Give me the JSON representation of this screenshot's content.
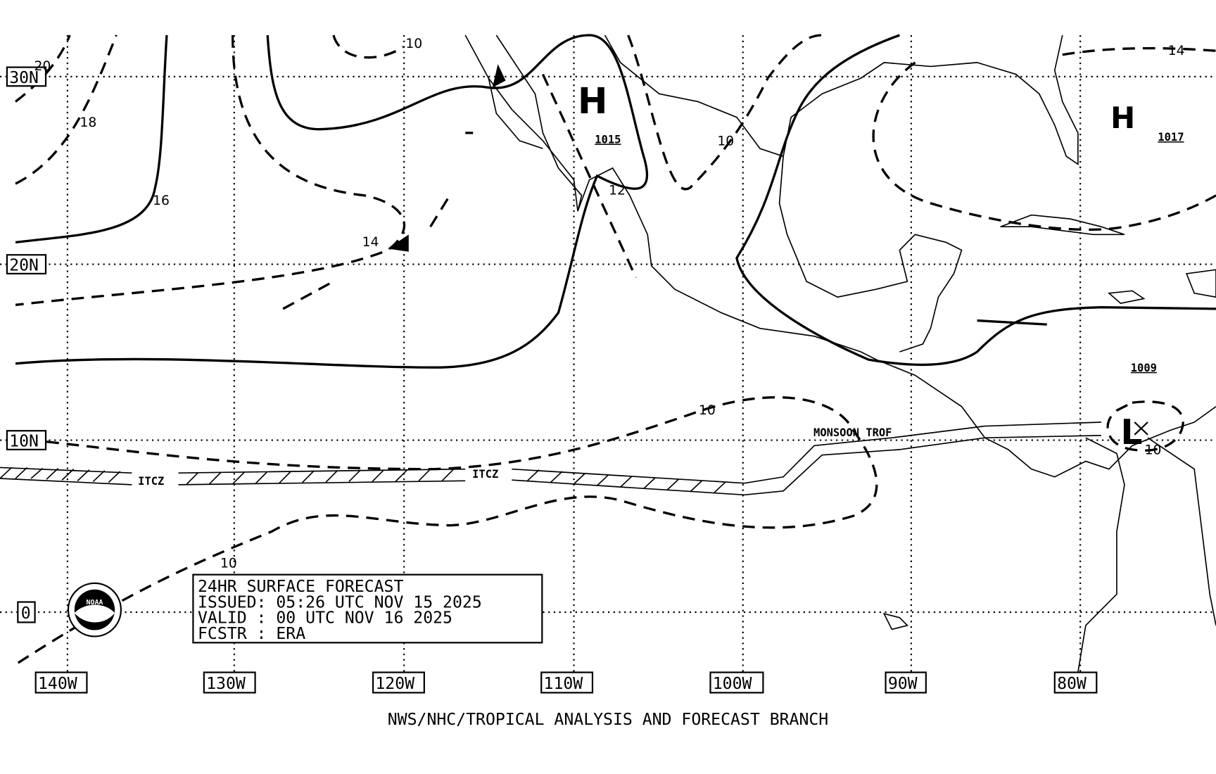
{
  "latitude_labels": [
    "30N",
    "20N",
    "10N",
    "0"
  ],
  "longitude_labels": [
    "140W",
    "130W",
    "120W",
    "110W",
    "100W",
    "90W",
    "80W"
  ],
  "isobar_labels": [
    "20",
    "18",
    "16",
    "14",
    "10",
    "10",
    "12",
    "14",
    "10",
    "10",
    "10"
  ],
  "pressure_centers": [
    {
      "symbol": "H",
      "pressure": "1015"
    },
    {
      "symbol": "H",
      "pressure": "1017"
    },
    {
      "symbol": "L",
      "pressure": "1009"
    }
  ],
  "features": [
    "ITCZ",
    "ITCZ",
    "MONSOON TROF"
  ],
  "forecast_box": [
    "24HR SURFACE FORECAST",
    "ISSUED: 05:26 UTC NOV 15 2025",
    "VALID : 00 UTC NOV 16 2025",
    "FCSTR : ERA"
  ],
  "logo": "NOAA",
  "footer": "NWS/NHC/TROPICAL ANALYSIS AND FORECAST BRANCH"
}
